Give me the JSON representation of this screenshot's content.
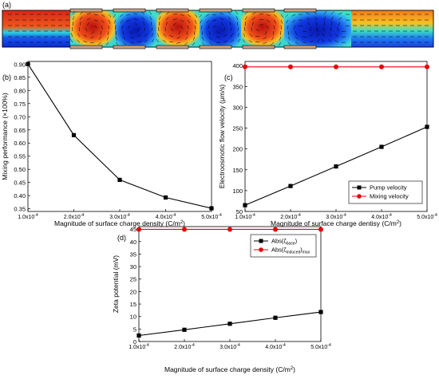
{
  "panel_a": {
    "label": "(a)",
    "description_colors": {
      "low": "#0a2bd6",
      "mid": "#2ad2e0",
      "high": "#e8321a"
    }
  },
  "chart_data": [
    {
      "type": "line",
      "panel_label": "(b)",
      "x": [
        0.0001,
        0.0002,
        0.0003,
        0.0004,
        0.0005
      ],
      "xtick_labels": [
        "1.0x10",
        "2.0x10",
        "3.0x10",
        "4.0x10",
        "5.0x10"
      ],
      "xtick_exp": "-4",
      "xlim": [
        0.0001,
        0.0005
      ],
      "xlabel": "Magnitude of surface charge density (C/m",
      "xlabel_sup": "2",
      "xlabel_end": ")",
      "ylabel": "Mixing performance (×100%)",
      "ylim": [
        0.34,
        0.91
      ],
      "yticks": [
        0.35,
        0.4,
        0.45,
        0.5,
        0.55,
        0.6,
        0.65,
        0.7,
        0.75,
        0.8,
        0.85,
        0.9
      ],
      "ytick_labels": [
        "0.35",
        "0.40",
        "0.45",
        "0.50",
        "0.55",
        "0.60",
        "0.65",
        "0.70",
        "0.75",
        "0.80",
        "0.85",
        "0.90"
      ],
      "series": [
        {
          "values": [
            0.9,
            0.63,
            0.46,
            0.393,
            0.352
          ],
          "color": "#000000",
          "marker": "square"
        }
      ],
      "grid": false
    },
    {
      "type": "line",
      "panel_label": "(c)",
      "x": [
        0.0001,
        0.0002,
        0.0003,
        0.0004,
        0.0005
      ],
      "xtick_labels": [
        "1.0x10",
        "2.0x10",
        "3.0x10",
        "4.0x10",
        "5.0x10"
      ],
      "xtick_exp": "-4",
      "xlim": [
        0.0001,
        0.0005
      ],
      "xlabel": "Magnitude of surface charge dentisy (C/m",
      "xlabel_sup": "2",
      "xlabel_end": ")",
      "ylabel": "Electroosmotic flow velocity (μm/s)",
      "ylim": [
        50,
        410
      ],
      "yticks": [
        50,
        100,
        150,
        200,
        250,
        300,
        350,
        400
      ],
      "ytick_labels": [
        "50",
        "100",
        "150",
        "200",
        "250",
        "300",
        "350",
        "400"
      ],
      "series": [
        {
          "name": "Pump velocity",
          "values": [
            65,
            111,
            158,
            205,
            253
          ],
          "color": "#000000",
          "marker": "square"
        },
        {
          "name": "Mixing velocity",
          "values": [
            397,
            397,
            397,
            397,
            397
          ],
          "color": "#e8000b",
          "marker": "circle"
        }
      ],
      "legend": "bottom-right",
      "grid": false
    },
    {
      "type": "line",
      "panel_label": "(d)",
      "x": [
        0.0001,
        0.0002,
        0.0003,
        0.0004,
        0.0005
      ],
      "xtick_labels": [
        "1.0x10",
        "2.0x10",
        "3.0x10",
        "4.0x10",
        "5.0x10"
      ],
      "xtick_exp": "-4",
      "xlim": [
        0.0001,
        0.0005
      ],
      "xlabel": "Magnitude of surface charge density (C/m",
      "xlabel_sup": "2",
      "xlabel_end": ")",
      "ylabel": "Zeta potential (mV)",
      "ylim": [
        0,
        46
      ],
      "yticks": [
        0,
        5,
        10,
        15,
        20,
        25,
        30,
        35,
        40,
        45
      ],
      "ytick_labels": [
        "0",
        "5",
        "10",
        "15",
        "20",
        "25",
        "30",
        "35",
        "40",
        "45"
      ],
      "series": [
        {
          "name": "Abs(ζ",
          "name_sub": "base",
          "name_end": ")",
          "values": [
            2.4,
            4.7,
            7.1,
            9.5,
            11.8
          ],
          "color": "#000000",
          "marker": "square"
        },
        {
          "name": "Abs(ζ",
          "name_sub": "induced",
          "name_end": ")",
          "name_sub2": "max",
          "values": [
            44.9,
            44.9,
            44.9,
            44.9,
            44.9
          ],
          "color": "#e8000b",
          "marker": "circle"
        }
      ],
      "legend": "top-right",
      "grid": false
    }
  ]
}
